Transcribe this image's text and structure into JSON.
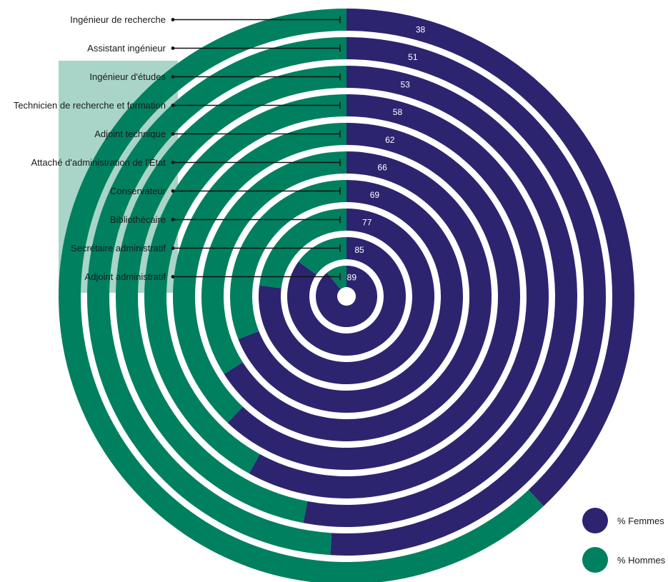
{
  "chart_data": {
    "type": "radial-bar",
    "categories": [
      "Ingénieur de recherche",
      "Assistant ingénieur",
      "Ingénieur d'études",
      "Technicien de recherche et formation",
      "Adjoint technique",
      "Attaché d'administration de l'État",
      "Conservateur",
      "Bibliothécaire",
      "Secrétaire administratif",
      "Adjoint administratif"
    ],
    "series": [
      {
        "name": "% Femmes",
        "values": [
          38,
          51,
          53,
          58,
          62,
          66,
          69,
          77,
          85,
          89
        ]
      },
      {
        "name": "% Hommes",
        "values": [
          62,
          49,
          47,
          42,
          38,
          34,
          31,
          23,
          15,
          11
        ]
      }
    ],
    "value_labels": [
      "38",
      "51",
      "53",
      "58",
      "62",
      "66",
      "69",
      "77",
      "85",
      "89"
    ],
    "legend": {
      "placement": "bottom-right",
      "items": [
        {
          "label": "% Femmes",
          "color": "#2d2470"
        },
        {
          "label": "% Hommes",
          "color": "#00805f"
        }
      ]
    },
    "colors": {
      "femmes": "#2d2470",
      "hommes": "#00805f",
      "label_backdrop": "#a8d5c8"
    }
  }
}
